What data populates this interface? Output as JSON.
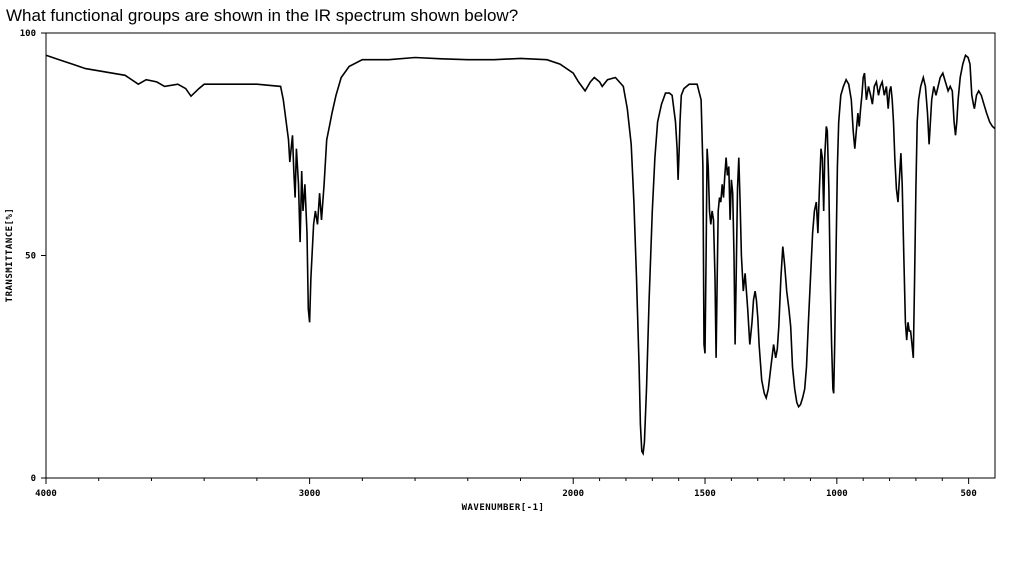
{
  "question": "What functional groups are shown in the IR spectrum shown below?",
  "chart_data": {
    "type": "line",
    "xlabel": "WAVENUMBER[-1]",
    "ylabel": "TRANSMITTANCE[%]",
    "xlim": [
      4000,
      400
    ],
    "ylim": [
      0,
      100
    ],
    "x_reversed": true,
    "grid": false,
    "line_color": "#000000",
    "x_ticks": [
      {
        "value": 4000,
        "label": "4000"
      },
      {
        "value": 3000,
        "label": "3000"
      },
      {
        "value": 2000,
        "label": "2000"
      },
      {
        "value": 1500,
        "label": "1500"
      },
      {
        "value": 1000,
        "label": "1000"
      },
      {
        "value": 500,
        "label": "500"
      }
    ],
    "x_minor_ticks": [
      3800,
      3600,
      3400,
      3200,
      2800,
      2600,
      2400,
      2200,
      1900,
      1800,
      1700,
      1600,
      1400,
      1300,
      1200,
      1100,
      900,
      800,
      700,
      600
    ],
    "y_ticks": [
      {
        "value": 0,
        "label": "0"
      },
      {
        "value": 50,
        "label": "50"
      },
      {
        "value": 100,
        "label": "100"
      }
    ],
    "series": [
      {
        "points": [
          [
            4000,
            95
          ],
          [
            3950,
            94
          ],
          [
            3900,
            93
          ],
          [
            3850,
            92
          ],
          [
            3800,
            91.5
          ],
          [
            3750,
            91
          ],
          [
            3700,
            90.5
          ],
          [
            3650,
            88.5
          ],
          [
            3620,
            89.5
          ],
          [
            3580,
            89
          ],
          [
            3550,
            88
          ],
          [
            3500,
            88.5
          ],
          [
            3470,
            87.5
          ],
          [
            3450,
            85.8
          ],
          [
            3420,
            87.5
          ],
          [
            3400,
            88.5
          ],
          [
            3300,
            88.5
          ],
          [
            3200,
            88.5
          ],
          [
            3110,
            88
          ],
          [
            3100,
            85
          ],
          [
            3080,
            76
          ],
          [
            3075,
            71
          ],
          [
            3065,
            77
          ],
          [
            3060,
            69
          ],
          [
            3055,
            63
          ],
          [
            3050,
            74
          ],
          [
            3042,
            66
          ],
          [
            3036,
            53
          ],
          [
            3030,
            69
          ],
          [
            3025,
            60
          ],
          [
            3018,
            66
          ],
          [
            3010,
            55
          ],
          [
            3005,
            38
          ],
          [
            3000,
            35
          ],
          [
            2995,
            45
          ],
          [
            2985,
            57
          ],
          [
            2978,
            60
          ],
          [
            2970,
            57
          ],
          [
            2962,
            64
          ],
          [
            2955,
            58
          ],
          [
            2945,
            66
          ],
          [
            2935,
            76
          ],
          [
            2925,
            79
          ],
          [
            2915,
            82
          ],
          [
            2900,
            86
          ],
          [
            2880,
            90
          ],
          [
            2850,
            92.5
          ],
          [
            2800,
            94
          ],
          [
            2700,
            94
          ],
          [
            2600,
            94.5
          ],
          [
            2500,
            94.2
          ],
          [
            2400,
            94
          ],
          [
            2300,
            94
          ],
          [
            2200,
            94.3
          ],
          [
            2100,
            94
          ],
          [
            2050,
            93
          ],
          [
            2000,
            91
          ],
          [
            1980,
            89
          ],
          [
            1955,
            87
          ],
          [
            1935,
            89
          ],
          [
            1920,
            90
          ],
          [
            1900,
            89
          ],
          [
            1890,
            88
          ],
          [
            1870,
            89.5
          ],
          [
            1840,
            90
          ],
          [
            1810,
            88
          ],
          [
            1795,
            83
          ],
          [
            1780,
            75
          ],
          [
            1770,
            62
          ],
          [
            1760,
            45
          ],
          [
            1750,
            25
          ],
          [
            1745,
            12
          ],
          [
            1740,
            6
          ],
          [
            1735,
            5.5
          ],
          [
            1730,
            8
          ],
          [
            1722,
            20
          ],
          [
            1712,
            40
          ],
          [
            1700,
            60
          ],
          [
            1690,
            72
          ],
          [
            1680,
            80
          ],
          [
            1665,
            84
          ],
          [
            1650,
            86.5
          ],
          [
            1635,
            86.5
          ],
          [
            1625,
            86
          ],
          [
            1612,
            80
          ],
          [
            1606,
            74
          ],
          [
            1602,
            67
          ],
          [
            1598,
            74
          ],
          [
            1595,
            80
          ],
          [
            1590,
            86
          ],
          [
            1580,
            87.5
          ],
          [
            1560,
            88.5
          ],
          [
            1530,
            88.5
          ],
          [
            1515,
            85
          ],
          [
            1508,
            70
          ],
          [
            1504,
            30
          ],
          [
            1500,
            28
          ],
          [
            1496,
            50
          ],
          [
            1492,
            74
          ],
          [
            1488,
            70
          ],
          [
            1483,
            60
          ],
          [
            1478,
            57
          ],
          [
            1473,
            60
          ],
          [
            1468,
            58
          ],
          [
            1462,
            45
          ],
          [
            1458,
            27
          ],
          [
            1454,
            45
          ],
          [
            1450,
            60
          ],
          [
            1445,
            63
          ],
          [
            1440,
            62
          ],
          [
            1435,
            66
          ],
          [
            1430,
            63
          ],
          [
            1425,
            68
          ],
          [
            1420,
            72
          ],
          [
            1415,
            68
          ],
          [
            1410,
            70
          ],
          [
            1405,
            58
          ],
          [
            1400,
            67
          ],
          [
            1395,
            64
          ],
          [
            1390,
            50
          ],
          [
            1386,
            30
          ],
          [
            1382,
            44
          ],
          [
            1377,
            65
          ],
          [
            1372,
            72
          ],
          [
            1367,
            62
          ],
          [
            1362,
            50
          ],
          [
            1355,
            42
          ],
          [
            1348,
            46
          ],
          [
            1343,
            42
          ],
          [
            1338,
            38
          ],
          [
            1330,
            30
          ],
          [
            1322,
            35
          ],
          [
            1316,
            40
          ],
          [
            1310,
            42
          ],
          [
            1305,
            40
          ],
          [
            1300,
            36
          ],
          [
            1295,
            30
          ],
          [
            1285,
            22
          ],
          [
            1275,
            19
          ],
          [
            1268,
            18
          ],
          [
            1260,
            20
          ],
          [
            1250,
            25
          ],
          [
            1240,
            30
          ],
          [
            1232,
            27
          ],
          [
            1226,
            29
          ],
          [
            1220,
            34
          ],
          [
            1212,
            45
          ],
          [
            1205,
            52
          ],
          [
            1198,
            48
          ],
          [
            1190,
            42
          ],
          [
            1182,
            38
          ],
          [
            1175,
            34
          ],
          [
            1168,
            25
          ],
          [
            1160,
            20
          ],
          [
            1152,
            17
          ],
          [
            1145,
            16
          ],
          [
            1138,
            16.5
          ],
          [
            1130,
            18
          ],
          [
            1122,
            20
          ],
          [
            1115,
            25
          ],
          [
            1108,
            35
          ],
          [
            1100,
            45
          ],
          [
            1092,
            55
          ],
          [
            1085,
            60
          ],
          [
            1078,
            62
          ],
          [
            1072,
            55
          ],
          [
            1066,
            65
          ],
          [
            1060,
            74
          ],
          [
            1055,
            72
          ],
          [
            1050,
            60
          ],
          [
            1046,
            72
          ],
          [
            1040,
            79
          ],
          [
            1036,
            78
          ],
          [
            1030,
            65
          ],
          [
            1025,
            45
          ],
          [
            1020,
            30
          ],
          [
            1015,
            20
          ],
          [
            1012,
            19
          ],
          [
            1008,
            30
          ],
          [
            1003,
            50
          ],
          [
            998,
            70
          ],
          [
            993,
            80
          ],
          [
            985,
            86
          ],
          [
            975,
            88
          ],
          [
            965,
            89.5
          ],
          [
            955,
            88.5
          ],
          [
            945,
            85
          ],
          [
            938,
            78
          ],
          [
            932,
            74
          ],
          [
            926,
            78
          ],
          [
            920,
            82
          ],
          [
            915,
            79
          ],
          [
            910,
            83
          ],
          [
            905,
            86
          ],
          [
            900,
            90
          ],
          [
            895,
            91
          ],
          [
            888,
            85
          ],
          [
            880,
            88
          ],
          [
            872,
            86
          ],
          [
            865,
            84
          ],
          [
            858,
            88
          ],
          [
            850,
            89
          ],
          [
            842,
            86
          ],
          [
            835,
            88
          ],
          [
            828,
            89
          ],
          [
            820,
            86
          ],
          [
            812,
            88
          ],
          [
            805,
            83
          ],
          [
            800,
            87
          ],
          [
            795,
            88
          ],
          [
            790,
            85
          ],
          [
            785,
            80
          ],
          [
            780,
            72
          ],
          [
            774,
            65
          ],
          [
            768,
            62
          ],
          [
            762,
            68
          ],
          [
            757,
            73
          ],
          [
            752,
            66
          ],
          [
            746,
            50
          ],
          [
            740,
            35
          ],
          [
            735,
            31
          ],
          [
            730,
            35
          ],
          [
            725,
            33
          ],
          [
            720,
            33
          ],
          [
            715,
            30
          ],
          [
            710,
            27
          ],
          [
            705,
            45
          ],
          [
            700,
            65
          ],
          [
            695,
            80
          ],
          [
            690,
            85
          ],
          [
            682,
            88
          ],
          [
            672,
            90
          ],
          [
            664,
            88
          ],
          [
            656,
            82
          ],
          [
            650,
            75
          ],
          [
            645,
            80
          ],
          [
            640,
            85
          ],
          [
            632,
            88
          ],
          [
            624,
            86
          ],
          [
            616,
            88
          ],
          [
            608,
            90
          ],
          [
            598,
            91
          ],
          [
            588,
            89
          ],
          [
            578,
            87
          ],
          [
            570,
            88
          ],
          [
            562,
            87
          ],
          [
            555,
            80
          ],
          [
            550,
            77
          ],
          [
            545,
            80
          ],
          [
            540,
            85
          ],
          [
            532,
            90
          ],
          [
            522,
            93
          ],
          [
            512,
            95
          ],
          [
            502,
            94.5
          ],
          [
            495,
            93
          ],
          [
            488,
            86
          ],
          [
            482,
            84
          ],
          [
            478,
            83
          ],
          [
            470,
            86
          ],
          [
            462,
            87
          ],
          [
            452,
            86
          ],
          [
            442,
            84
          ],
          [
            432,
            82
          ],
          [
            420,
            80
          ],
          [
            410,
            79
          ],
          [
            400,
            78.5
          ]
        ]
      }
    ]
  }
}
